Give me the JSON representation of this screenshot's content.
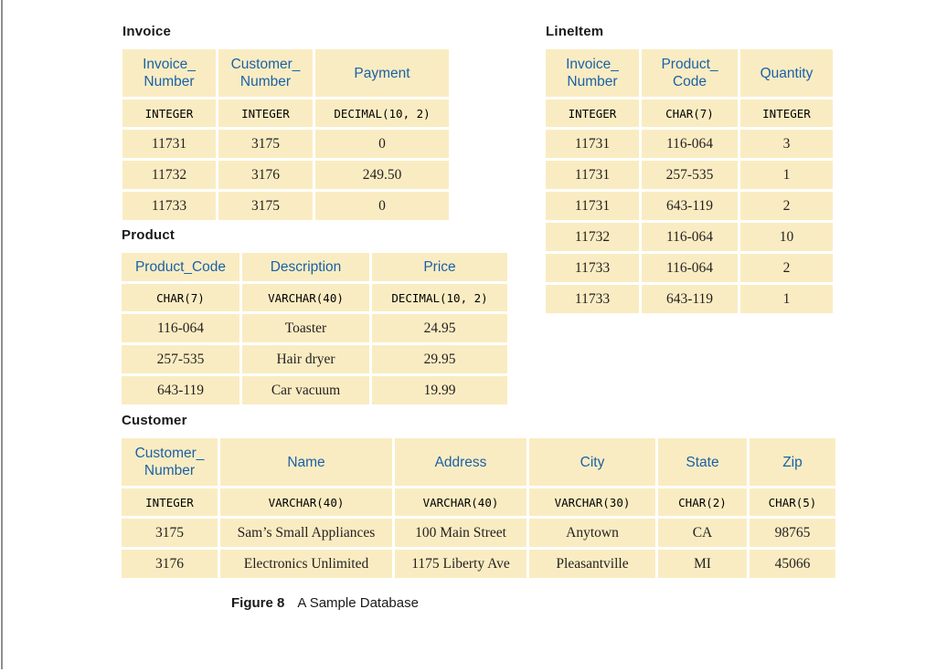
{
  "page": {
    "caption": {
      "label": "Figure 8",
      "text": "A Sample Database"
    }
  },
  "colors": {
    "cell_background": "#FAECC2",
    "header_text": "#1A61A8",
    "title_text": "#1A1A1A",
    "data_text": "#231F20",
    "type_text": "#000000",
    "left_rule": "#8E8E8E"
  },
  "tables": [
    {
      "name": "Invoice",
      "columns": [
        "Invoice_\nNumber",
        "Customer_\nNumber",
        "Payment"
      ],
      "types": [
        "INTEGER",
        "INTEGER",
        "DECIMAL(10, 2)"
      ],
      "rows": [
        [
          "11731",
          "3175",
          "0"
        ],
        [
          "11732",
          "3176",
          "249.50"
        ],
        [
          "11733",
          "3175",
          "0"
        ]
      ]
    },
    {
      "name": "LineItem",
      "columns": [
        "Invoice_\nNumber",
        "Product_\nCode",
        "Quantity"
      ],
      "types": [
        "INTEGER",
        "CHAR(7)",
        "INTEGER"
      ],
      "rows": [
        [
          "11731",
          "116-064",
          "3"
        ],
        [
          "11731",
          "257-535",
          "1"
        ],
        [
          "11731",
          "643-119",
          "2"
        ],
        [
          "11732",
          "116-064",
          "10"
        ],
        [
          "11733",
          "116-064",
          "2"
        ],
        [
          "11733",
          "643-119",
          "1"
        ]
      ]
    },
    {
      "name": "Product",
      "columns": [
        "Product_Code",
        "Description",
        "Price"
      ],
      "types": [
        "CHAR(7)",
        "VARCHAR(40)",
        "DECIMAL(10, 2)"
      ],
      "rows": [
        [
          "116-064",
          "Toaster",
          "24.95"
        ],
        [
          "257-535",
          "Hair dryer",
          "29.95"
        ],
        [
          "643-119",
          "Car vacuum",
          "19.99"
        ]
      ]
    },
    {
      "name": "Customer",
      "columns": [
        "Customer_\nNumber",
        "Name",
        "Address",
        "City",
        "State",
        "Zip"
      ],
      "types": [
        "INTEGER",
        "VARCHAR(40)",
        "VARCHAR(40)",
        "VARCHAR(30)",
        "CHAR(2)",
        "CHAR(5)"
      ],
      "rows": [
        [
          "3175",
          "Sam’s Small Appliances",
          "100 Main Street",
          "Anytown",
          "CA",
          "98765"
        ],
        [
          "3176",
          "Electronics Unlimited",
          "1175 Liberty Ave",
          "Pleasantville",
          "MI",
          "45066"
        ]
      ]
    }
  ]
}
